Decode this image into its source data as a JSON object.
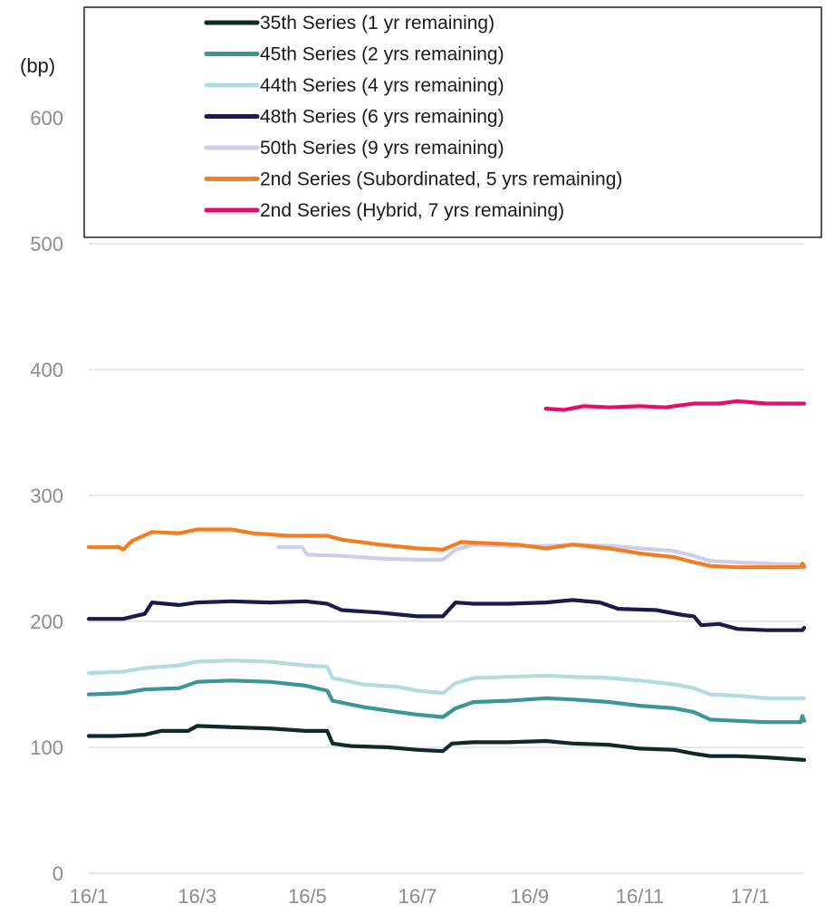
{
  "chart_data": {
    "type": "line",
    "ylabel": "(bp)",
    "ylim": [
      0,
      600
    ],
    "yticks": [
      0,
      100,
      200,
      300,
      400,
      500,
      600
    ],
    "xlim": [
      "2016-01-01",
      "2017-01-31"
    ],
    "xticks": [
      {
        "date": "2016-01-01",
        "label": "16/1"
      },
      {
        "date": "2016-03-01",
        "label": "16/3"
      },
      {
        "date": "2016-05-01",
        "label": "16/5"
      },
      {
        "date": "2016-07-01",
        "label": "16/7"
      },
      {
        "date": "2016-09-01",
        "label": "16/9"
      },
      {
        "date": "2016-11-01",
        "label": "16/11"
      },
      {
        "date": "2017-01-01",
        "label": "17/1"
      }
    ],
    "grid": true,
    "legend": "top",
    "series": [
      {
        "name": "35th Series (1 yr remaining)",
        "color": "#0f2a26",
        "points": [
          [
            "2016-01-01",
            109
          ],
          [
            "2016-01-15",
            109
          ],
          [
            "2016-02-01",
            110
          ],
          [
            "2016-02-10",
            113
          ],
          [
            "2016-02-25",
            113
          ],
          [
            "2016-03-01",
            117
          ],
          [
            "2016-03-20",
            116
          ],
          [
            "2016-04-10",
            115
          ],
          [
            "2016-04-30",
            113
          ],
          [
            "2016-05-12",
            113
          ],
          [
            "2016-05-15",
            103
          ],
          [
            "2016-05-25",
            101
          ],
          [
            "2016-06-15",
            100
          ],
          [
            "2016-07-01",
            98
          ],
          [
            "2016-07-15",
            97
          ],
          [
            "2016-07-20",
            103
          ],
          [
            "2016-08-01",
            104
          ],
          [
            "2016-08-20",
            104
          ],
          [
            "2016-09-10",
            105
          ],
          [
            "2016-09-25",
            103
          ],
          [
            "2016-10-15",
            102
          ],
          [
            "2016-11-01",
            99
          ],
          [
            "2016-11-20",
            98
          ],
          [
            "2016-12-01",
            95
          ],
          [
            "2016-12-10",
            93
          ],
          [
            "2016-12-25",
            93
          ],
          [
            "2017-01-10",
            92
          ],
          [
            "2017-01-31",
            90
          ]
        ]
      },
      {
        "name": "45th Series (2 yrs remaining)",
        "color": "#3a9697",
        "points": [
          [
            "2016-01-01",
            142
          ],
          [
            "2016-01-20",
            143
          ],
          [
            "2016-02-01",
            146
          ],
          [
            "2016-02-20",
            147
          ],
          [
            "2016-03-01",
            152
          ],
          [
            "2016-03-20",
            153
          ],
          [
            "2016-04-10",
            152
          ],
          [
            "2016-04-30",
            149
          ],
          [
            "2016-05-12",
            145
          ],
          [
            "2016-05-15",
            137
          ],
          [
            "2016-06-01",
            132
          ],
          [
            "2016-06-20",
            128
          ],
          [
            "2016-07-01",
            126
          ],
          [
            "2016-07-15",
            124
          ],
          [
            "2016-07-22",
            131
          ],
          [
            "2016-08-01",
            136
          ],
          [
            "2016-08-20",
            137
          ],
          [
            "2016-09-10",
            139
          ],
          [
            "2016-09-25",
            138
          ],
          [
            "2016-10-15",
            136
          ],
          [
            "2016-11-01",
            133
          ],
          [
            "2016-11-20",
            131
          ],
          [
            "2016-12-01",
            128
          ],
          [
            "2016-12-10",
            122
          ],
          [
            "2016-12-25",
            121
          ],
          [
            "2017-01-10",
            120
          ],
          [
            "2017-01-29",
            120
          ],
          [
            "2017-01-30",
            125
          ],
          [
            "2017-01-31",
            121
          ]
        ]
      },
      {
        "name": "44th Series (4 yrs remaining)",
        "color": "#b3dcdc",
        "points": [
          [
            "2016-01-01",
            159
          ],
          [
            "2016-01-20",
            160
          ],
          [
            "2016-02-01",
            163
          ],
          [
            "2016-02-20",
            165
          ],
          [
            "2016-03-01",
            168
          ],
          [
            "2016-03-20",
            169
          ],
          [
            "2016-04-10",
            168
          ],
          [
            "2016-04-30",
            165
          ],
          [
            "2016-05-12",
            164
          ],
          [
            "2016-05-15",
            155
          ],
          [
            "2016-06-01",
            150
          ],
          [
            "2016-06-20",
            148
          ],
          [
            "2016-07-01",
            145
          ],
          [
            "2016-07-15",
            143
          ],
          [
            "2016-07-22",
            151
          ],
          [
            "2016-08-01",
            155
          ],
          [
            "2016-08-20",
            156
          ],
          [
            "2016-09-10",
            157
          ],
          [
            "2016-09-25",
            156
          ],
          [
            "2016-10-15",
            155
          ],
          [
            "2016-11-01",
            153
          ],
          [
            "2016-11-20",
            150
          ],
          [
            "2016-12-01",
            147
          ],
          [
            "2016-12-10",
            142
          ],
          [
            "2016-12-25",
            141
          ],
          [
            "2017-01-10",
            139
          ],
          [
            "2017-01-31",
            139
          ]
        ]
      },
      {
        "name": "48th Series (6 yrs remaining)",
        "color": "#1c1a4b",
        "points": [
          [
            "2016-01-01",
            202
          ],
          [
            "2016-01-20",
            202
          ],
          [
            "2016-02-01",
            206
          ],
          [
            "2016-02-05",
            215
          ],
          [
            "2016-02-20",
            213
          ],
          [
            "2016-03-01",
            215
          ],
          [
            "2016-03-20",
            216
          ],
          [
            "2016-04-10",
            215
          ],
          [
            "2016-04-30",
            216
          ],
          [
            "2016-05-12",
            214
          ],
          [
            "2016-05-20",
            209
          ],
          [
            "2016-06-10",
            207
          ],
          [
            "2016-07-01",
            204
          ],
          [
            "2016-07-15",
            204
          ],
          [
            "2016-07-22",
            215
          ],
          [
            "2016-08-01",
            214
          ],
          [
            "2016-08-20",
            214
          ],
          [
            "2016-09-10",
            215
          ],
          [
            "2016-09-25",
            217
          ],
          [
            "2016-10-10",
            215
          ],
          [
            "2016-10-20",
            210
          ],
          [
            "2016-11-10",
            209
          ],
          [
            "2016-11-25",
            205
          ],
          [
            "2016-12-01",
            204
          ],
          [
            "2016-12-05",
            197
          ],
          [
            "2016-12-15",
            198
          ],
          [
            "2016-12-25",
            194
          ],
          [
            "2017-01-10",
            193
          ],
          [
            "2017-01-30",
            193
          ],
          [
            "2017-01-31",
            195
          ]
        ]
      },
      {
        "name": "50th Series (9 yrs remaining)",
        "color": "#cfcde8",
        "points": [
          [
            "2016-04-15",
            259
          ],
          [
            "2016-04-28",
            259
          ],
          [
            "2016-05-01",
            253
          ],
          [
            "2016-05-20",
            252
          ],
          [
            "2016-06-10",
            250
          ],
          [
            "2016-07-01",
            249
          ],
          [
            "2016-07-15",
            249
          ],
          [
            "2016-07-22",
            257
          ],
          [
            "2016-08-01",
            261
          ],
          [
            "2016-08-20",
            260
          ],
          [
            "2016-09-10",
            260
          ],
          [
            "2016-09-25",
            261
          ],
          [
            "2016-10-15",
            260
          ],
          [
            "2016-11-01",
            258
          ],
          [
            "2016-11-20",
            256
          ],
          [
            "2016-12-01",
            252
          ],
          [
            "2016-12-10",
            248
          ],
          [
            "2016-12-25",
            247
          ],
          [
            "2017-01-10",
            246
          ],
          [
            "2017-01-31",
            245
          ]
        ]
      },
      {
        "name": "2nd Series (Subordinated, 5 yrs remaining)",
        "color": "#f57c1f",
        "points": [
          [
            "2016-01-01",
            259
          ],
          [
            "2016-01-18",
            259
          ],
          [
            "2016-01-20",
            257
          ],
          [
            "2016-01-25",
            264
          ],
          [
            "2016-02-05",
            271
          ],
          [
            "2016-02-20",
            270
          ],
          [
            "2016-03-01",
            273
          ],
          [
            "2016-03-20",
            273
          ],
          [
            "2016-04-01",
            270
          ],
          [
            "2016-04-20",
            268
          ],
          [
            "2016-05-12",
            268
          ],
          [
            "2016-05-20",
            265
          ],
          [
            "2016-06-10",
            261
          ],
          [
            "2016-07-01",
            258
          ],
          [
            "2016-07-15",
            257
          ],
          [
            "2016-07-25",
            263
          ],
          [
            "2016-08-10",
            262
          ],
          [
            "2016-08-25",
            261
          ],
          [
            "2016-09-10",
            258
          ],
          [
            "2016-09-25",
            261
          ],
          [
            "2016-10-15",
            258
          ],
          [
            "2016-11-01",
            254
          ],
          [
            "2016-11-20",
            251
          ],
          [
            "2016-12-01",
            247
          ],
          [
            "2016-12-10",
            244
          ],
          [
            "2016-12-25",
            243
          ],
          [
            "2017-01-10",
            243
          ],
          [
            "2017-01-29",
            243
          ],
          [
            "2017-01-30",
            246
          ],
          [
            "2017-01-31",
            243
          ]
        ]
      },
      {
        "name": "2nd Series (Hybrid, 7 yrs remaining)",
        "color": "#ea0a67",
        "points": [
          [
            "2016-09-10",
            369
          ],
          [
            "2016-09-20",
            368
          ],
          [
            "2016-10-01",
            371
          ],
          [
            "2016-10-15",
            370
          ],
          [
            "2016-11-01",
            371
          ],
          [
            "2016-11-15",
            370
          ],
          [
            "2016-12-01",
            373
          ],
          [
            "2016-12-15",
            373
          ],
          [
            "2016-12-25",
            375
          ],
          [
            "2017-01-10",
            373
          ],
          [
            "2017-01-31",
            373
          ]
        ]
      }
    ]
  }
}
